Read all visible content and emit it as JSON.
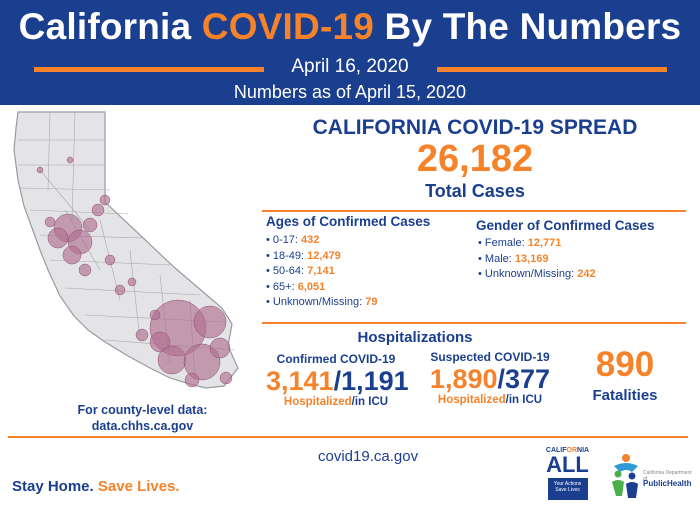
{
  "header": {
    "title_pre": "California ",
    "title_accent": "COVID-19",
    "title_post": " By The Numbers",
    "date": "April 16, 2020",
    "as_of": "Numbers as of April 15, 2020"
  },
  "colors": {
    "navy": "#1b3f8f",
    "orange": "#f6822a",
    "bubble": "#b07090"
  },
  "map": {
    "note_line1": "For county-level data:",
    "note_line2": "data.chhs.ca.gov"
  },
  "spread": {
    "title": "CALIFORNIA COVID-19 SPREAD",
    "total": "26,182",
    "total_label": "Total Cases"
  },
  "ages": {
    "heading": "Ages of Confirmed Cases",
    "items": [
      {
        "label": "• 0-17: ",
        "value": "432"
      },
      {
        "label": "• 18-49: ",
        "value": "12,479"
      },
      {
        "label": "• 50-64: ",
        "value": "7,141"
      },
      {
        "label": "• 65+: ",
        "value": "6,051"
      },
      {
        "label": "• Unknown/Missing: ",
        "value": "79"
      }
    ]
  },
  "gender": {
    "heading": "Gender of Confirmed Cases",
    "items": [
      {
        "label": "• Female: ",
        "value": "12,771"
      },
      {
        "label": "• Male: ",
        "value": "13,169"
      },
      {
        "label": "• Unknown/Missing: ",
        "value": "242"
      }
    ]
  },
  "hospitalizations": {
    "title": "Hospitalizations",
    "confirmed": {
      "label": "Confirmed COVID-19",
      "hosp": "3,141",
      "sep": "/",
      "icu": "1,191",
      "sub_hosp": "Hospitalized",
      "sub_icu": "/in ICU"
    },
    "suspected": {
      "label": "Suspected COVID-19",
      "hosp": "1,890",
      "sep": "/",
      "icu": "377",
      "sub_hosp": "Hospitalized",
      "sub_icu": "/in ICU"
    }
  },
  "fatalities": {
    "value": "890",
    "label": "Fatalities"
  },
  "footer": {
    "stay": "Stay Home. ",
    "save": "Save Lives.",
    "website": "covid19.ca.gov",
    "ca_logo_top_pre": "CALIF",
    "ca_logo_top_accent": "OR",
    "ca_logo_top_post": "NIA",
    "ca_logo_main": "ALL",
    "ca_logo_box": "Your Actions Save Lives",
    "cdph_name": "PublicHealth",
    "cdph_sub": "California Department of"
  }
}
